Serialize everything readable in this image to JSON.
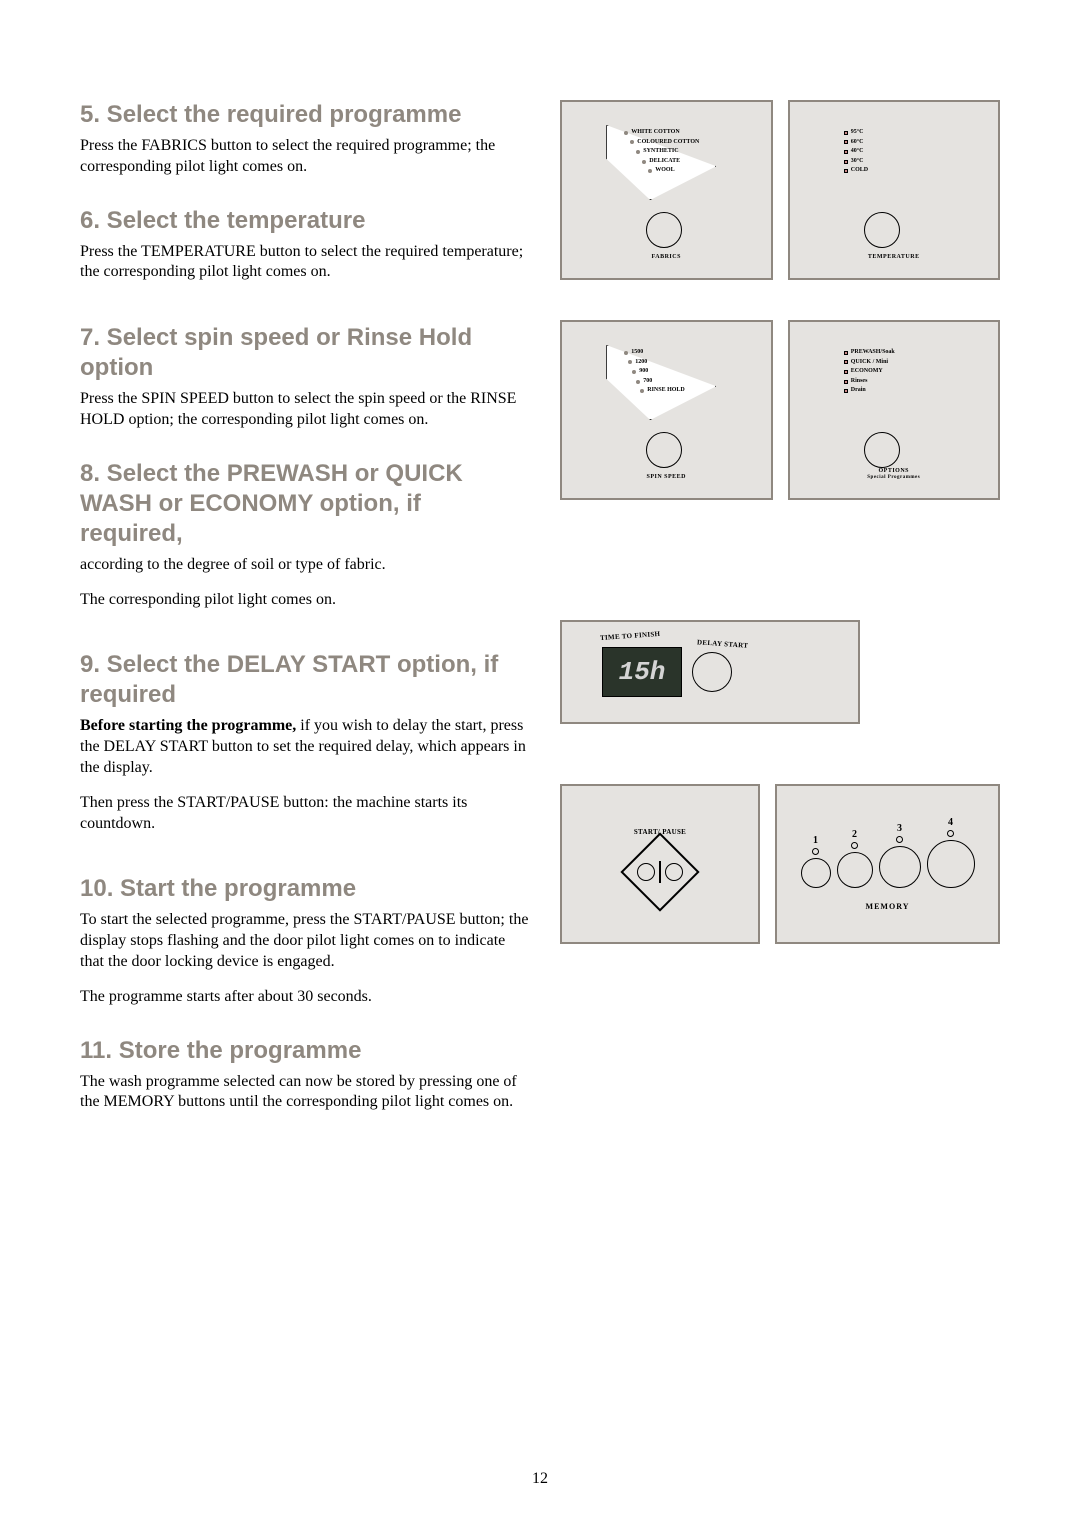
{
  "sections": {
    "s5": {
      "title": "5. Select the required programme",
      "body": "Press the FABRICS button to select the required programme; the corresponding pilot light comes on."
    },
    "s6": {
      "title": "6. Select the temperature",
      "body": "Press the TEMPERATURE button to select the required temperature; the corresponding pilot light comes on."
    },
    "s7": {
      "title": "7. Select spin speed or Rinse Hold option",
      "body": "Press the SPIN SPEED button to select the spin speed or the RINSE HOLD option; the corresponding pilot light comes on."
    },
    "s8": {
      "title": "8. Select the PREWASH or QUICK WASH or ECONOMY option, if required,",
      "body1": "according to the degree of soil or type of fabric.",
      "body2": "The corresponding pilot light comes on."
    },
    "s9": {
      "title": "9. Select the DELAY START option, if required",
      "body1_bold": "Before starting the programme,",
      "body1_rest": " if you wish to delay the start, press the DELAY START button to set the required delay, which appears in the display.",
      "body2": "Then press the START/PAUSE button: the machine starts its countdown."
    },
    "s10": {
      "title": "10. Start the programme",
      "body": "To start the selected programme, press the START/PAUSE button; the display stops flashing and the door pilot light comes on to indicate that the door locking device is engaged.",
      "body2": "The programme starts after about 30 seconds."
    },
    "s11": {
      "title": "11. Store the programme",
      "body": "The wash programme selected can now be stored by pressing one of the MEMORY buttons until the corresponding pilot light comes on."
    }
  },
  "panels": {
    "fabrics": {
      "options": [
        "WHITE COTTON",
        "COLOURED COTTON",
        "SYNTHETIC",
        "DELICATE",
        "WOOL"
      ],
      "label": "FABRICS"
    },
    "temperature": {
      "options": [
        "95°C",
        "60°C",
        "40°C",
        "30°C",
        "COLD"
      ],
      "label": "TEMPERATURE"
    },
    "spin": {
      "options": [
        "1500",
        "1200",
        "900",
        "700",
        "RINSE HOLD"
      ],
      "label": "SPIN SPEED"
    },
    "options": {
      "options": [
        "PREWASH/Soak",
        "QUICK / Mini",
        "ECONOMY",
        "Rinses",
        "Drain"
      ],
      "label": "OPTIONS",
      "sublabel": "Special Programmes"
    },
    "delay": {
      "time_label": "TIME TO FINISH",
      "delay_label": "DELAY START",
      "display": "15h"
    },
    "start": {
      "label": "START/ PAUSE"
    },
    "memory": {
      "buttons": [
        "1",
        "2",
        "3",
        "4"
      ],
      "sizes": [
        30,
        36,
        42,
        48
      ],
      "label": "MEMORY"
    }
  },
  "page_number": "12",
  "colors": {
    "heading": "#8f8880",
    "panel_border": "#8f8880",
    "panel_bg": "#e5e3e0"
  }
}
